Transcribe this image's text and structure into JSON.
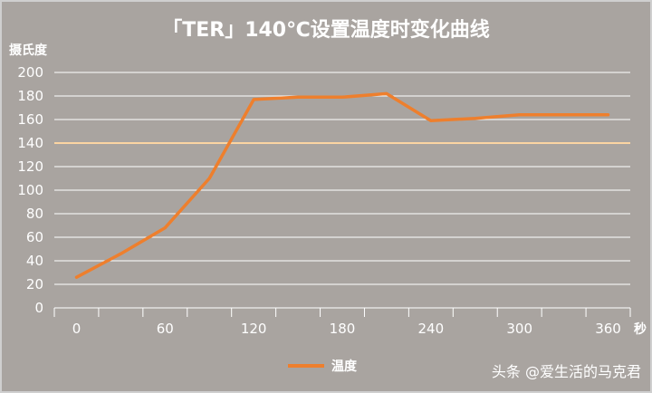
{
  "title": "「TER」140℃设置温度时变化曲线",
  "watermark": "头条 @爱生活的马克君",
  "colors": {
    "background": "#a9a4a0",
    "series": "#ee7f2d",
    "reference": "#fbd5a2",
    "grid": "#ffffff",
    "text": "#ffffff"
  },
  "chart_data": {
    "type": "line",
    "title": "「TER」140℃设置温度时变化曲线",
    "ylabel": "摄氏度",
    "xunit": "秒",
    "ylim": [
      0,
      200
    ],
    "yticks": [
      0,
      20,
      40,
      60,
      80,
      100,
      120,
      140,
      160,
      180,
      200
    ],
    "xlim": [
      -15,
      375
    ],
    "xticks": [
      0,
      60,
      120,
      180,
      240,
      300,
      360
    ],
    "grid": true,
    "legend_position": "bottom",
    "reference_line": {
      "y": 140
    },
    "series": [
      {
        "name": "温度",
        "x": [
          0,
          30,
          60,
          90,
          120,
          150,
          180,
          210,
          240,
          270,
          300,
          330,
          360
        ],
        "y": [
          26,
          46,
          68,
          110,
          177,
          179,
          179,
          182,
          159,
          161,
          164,
          164,
          164
        ]
      }
    ]
  }
}
